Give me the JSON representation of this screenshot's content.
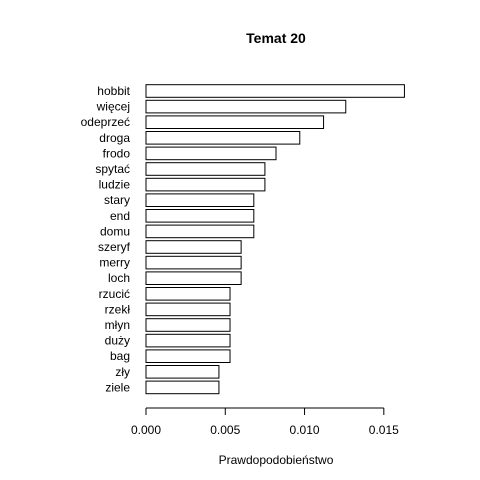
{
  "chart_data": {
    "type": "bar",
    "orientation": "horizontal",
    "title": "Temat 20",
    "xlabel": "Prawdopodobieństwo",
    "ylabel": "",
    "categories": [
      "hobbit",
      "więcej",
      "odeprzeć",
      "droga",
      "frodo",
      "spytać",
      "ludzie",
      "stary",
      "end",
      "domu",
      "szeryf",
      "merry",
      "loch",
      "rzucić",
      "rzekł",
      "młyn",
      "duży",
      "bag",
      "zły",
      "ziele"
    ],
    "values": [
      0.0163,
      0.0126,
      0.0112,
      0.0097,
      0.0082,
      0.0075,
      0.0075,
      0.0068,
      0.0068,
      0.0068,
      0.006,
      0.006,
      0.006,
      0.0053,
      0.0053,
      0.0053,
      0.0053,
      0.0053,
      0.0046,
      0.0046
    ],
    "xlim": [
      0,
      0.0165
    ],
    "xticks": [
      0.0,
      0.005,
      0.01,
      0.015
    ],
    "xtick_labels": [
      "0.000",
      "0.005",
      "0.010",
      "0.015"
    ],
    "bar_fill": "#ffffff",
    "bar_stroke": "#000000",
    "grid": false,
    "legend": "none"
  }
}
